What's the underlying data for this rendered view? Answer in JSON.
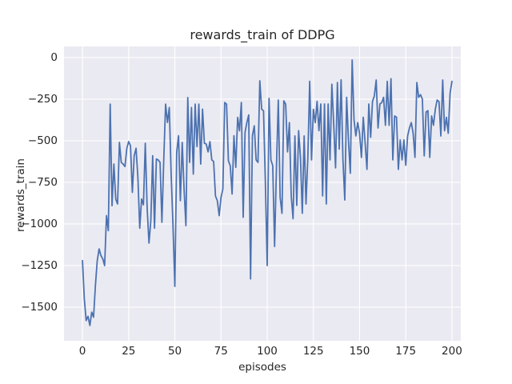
{
  "figure": {
    "title": "rewards_train of DDPG",
    "xlabel": "episodes",
    "ylabel": "rewards_train"
  },
  "colors": {
    "figure_bg": "#ffffff",
    "axes_bg": "#eaeaf2",
    "grid": "#ffffff",
    "line": "#4c72b0",
    "text": "#262626"
  },
  "chart_data": {
    "type": "line",
    "title": "rewards_train of DDPG",
    "xlabel": "episodes",
    "ylabel": "rewards_train",
    "grid": true,
    "legend": false,
    "x_ticks": [
      0,
      25,
      50,
      75,
      100,
      125,
      150,
      175,
      200
    ],
    "y_ticks": [
      0,
      -250,
      -500,
      -750,
      -1000,
      -1250,
      -1500
    ],
    "xlim": [
      -10,
      204.8
    ],
    "ylim": [
      -1702,
      67
    ],
    "series": [
      {
        "name": "rewards_train",
        "x_start": 0,
        "x_step": 1,
        "values": [
          -1220,
          -1450,
          -1580,
          -1555,
          -1610,
          -1530,
          -1560,
          -1370,
          -1220,
          -1150,
          -1190,
          -1210,
          -1250,
          -950,
          -1040,
          -280,
          -890,
          -640,
          -850,
          -880,
          -510,
          -630,
          -640,
          -655,
          -545,
          -505,
          -530,
          -810,
          -590,
          -545,
          -720,
          -1025,
          -850,
          -885,
          -515,
          -900,
          -1115,
          -980,
          -590,
          -1025,
          -610,
          -615,
          -630,
          -990,
          -615,
          -280,
          -390,
          -300,
          -700,
          -1010,
          -1375,
          -570,
          -470,
          -860,
          -510,
          -790,
          -1010,
          -240,
          -630,
          -300,
          -700,
          -280,
          -535,
          -280,
          -640,
          -310,
          -515,
          -520,
          -567,
          -505,
          -615,
          -625,
          -832,
          -860,
          -950,
          -840,
          -790,
          -270,
          -280,
          -620,
          -650,
          -820,
          -470,
          -660,
          -360,
          -440,
          -270,
          -960,
          -450,
          -390,
          -345,
          -1330,
          -470,
          -410,
          -615,
          -630,
          -140,
          -310,
          -320,
          -745,
          -1250,
          -245,
          -615,
          -650,
          -1135,
          -663,
          -255,
          -840,
          -936,
          -260,
          -280,
          -567,
          -391,
          -832,
          -968,
          -471,
          -888,
          -439,
          -600,
          -936,
          -471,
          -880,
          -600,
          -143,
          -615,
          -311,
          -391,
          -263,
          -439,
          -279,
          -831,
          -279,
          -880,
          -279,
          -615,
          -160,
          -400,
          -663,
          -150,
          -550,
          -134,
          -615,
          -856,
          -239,
          -503,
          -695,
          -15,
          -375,
          -471,
          -391,
          -455,
          -600,
          -359,
          -511,
          -672,
          -279,
          -479,
          -263,
          -231,
          -135,
          -423,
          -279,
          -271,
          -239,
          -407,
          -143,
          -407,
          -127,
          -615,
          -351,
          -359,
          -672,
          -495,
          -615,
          -495,
          -647,
          -471,
          -423,
          -391,
          -455,
          -600,
          -150,
          -239,
          -223,
          -250,
          -591,
          -327,
          -319,
          -600,
          -351,
          -407,
          -311,
          -255,
          -265,
          -471,
          -135,
          -440,
          -359,
          -455,
          -215,
          -143
        ]
      }
    ]
  }
}
